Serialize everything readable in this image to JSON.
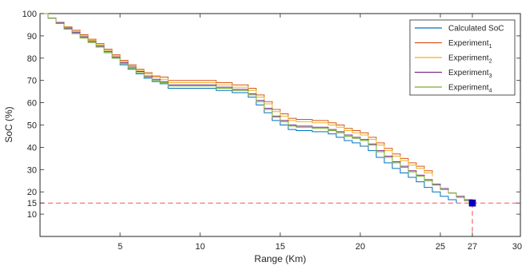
{
  "chart_data": {
    "type": "line",
    "xlabel": "Range (Km)",
    "ylabel": "SoC (%)",
    "xlim": [
      0,
      30
    ],
    "ylim": [
      0,
      100
    ],
    "xticks": [
      {
        "value": 5,
        "label": "5"
      },
      {
        "value": 10,
        "label": "10"
      },
      {
        "value": 15,
        "label": "15"
      },
      {
        "value": 20,
        "label": "20"
      },
      {
        "value": 25,
        "label": "25"
      },
      {
        "value": 27,
        "label": "27"
      },
      {
        "value": 30,
        "label": "30"
      }
    ],
    "yticks": [
      {
        "value": 10,
        "label": "10"
      },
      {
        "value": 15,
        "label": "15"
      },
      {
        "value": 20,
        "label": "20"
      },
      {
        "value": 30,
        "label": "30"
      },
      {
        "value": 40,
        "label": "40"
      },
      {
        "value": 50,
        "label": "50"
      },
      {
        "value": 60,
        "label": "60"
      },
      {
        "value": 70,
        "label": "70"
      },
      {
        "value": 80,
        "label": "80"
      },
      {
        "value": 90,
        "label": "90"
      },
      {
        "value": 100,
        "label": "100"
      }
    ],
    "legend_position": "top-right",
    "grid": false,
    "series": [
      {
        "name": "Calculated SoC",
        "name_parts": [
          "Calculated SoC",
          ""
        ],
        "color": "#0072BD",
        "x": [
          0,
          0.5,
          1,
          1.5,
          2,
          2.5,
          3,
          3.5,
          4,
          4.5,
          5,
          5.5,
          6,
          6.5,
          7,
          7.5,
          8,
          9,
          10,
          11,
          12,
          12.5,
          13,
          13.5,
          14,
          14.5,
          15,
          15.5,
          16,
          17,
          18,
          18.5,
          19,
          19.5,
          20,
          20.5,
          21,
          21.5,
          22,
          22.5,
          23,
          23.5,
          24,
          24.5,
          25,
          25.5,
          26
        ],
        "y": [
          100,
          98,
          96,
          93.5,
          91.5,
          89.5,
          87.5,
          85,
          82.5,
          80,
          77,
          75,
          73,
          71,
          69.5,
          68.5,
          66.5,
          66.5,
          66.5,
          65.5,
          64.5,
          64.5,
          62.5,
          59,
          55.5,
          52,
          50,
          48,
          47.5,
          47,
          46,
          44.5,
          43,
          42,
          40.5,
          38.5,
          35.5,
          33,
          30.5,
          28.5,
          26.5,
          24.5,
          22,
          20,
          18,
          16.5,
          15
        ]
      },
      {
        "name": "Experiment1",
        "name_parts": [
          "Experiment",
          "1"
        ],
        "color": "#D95319",
        "x": [
          0,
          0.5,
          1,
          1.5,
          2,
          2.5,
          3,
          3.5,
          4,
          4.5,
          5,
          5.5,
          6,
          6.5,
          7,
          7.5,
          8,
          9,
          10,
          11,
          12,
          12.5,
          13,
          13.5,
          14,
          14.5,
          15,
          15.5,
          16,
          17,
          18,
          18.5,
          19,
          19.5,
          20,
          20.5,
          21,
          21.5,
          22,
          22.5,
          23,
          23.5,
          24,
          24.5
        ],
        "y": [
          100,
          98,
          96,
          94,
          92.5,
          90.5,
          88.5,
          86.5,
          84,
          81.5,
          79,
          77,
          75,
          73.5,
          72,
          71.5,
          70,
          70,
          70,
          69,
          68,
          68,
          66.5,
          63.5,
          60.5,
          57,
          55,
          53,
          52.5,
          52,
          51,
          50,
          48.5,
          47.5,
          46.5,
          44.5,
          42,
          39.5,
          37,
          35,
          33,
          31.5,
          29.5,
          28
        ]
      },
      {
        "name": "Experiment2",
        "name_parts": [
          "Experiment",
          "2"
        ],
        "color": "#EDB120",
        "x": [
          0,
          0.5,
          1,
          1.5,
          2,
          2.5,
          3,
          3.5,
          4,
          4.5,
          5,
          5.5,
          6,
          6.5,
          7,
          7.5,
          8,
          9,
          10,
          11,
          12,
          12.5,
          13,
          13.5,
          14,
          14.5,
          15,
          15.5,
          16,
          17,
          18,
          18.5,
          19,
          19.5,
          20,
          20.5,
          21,
          21.5,
          22,
          22.5,
          23,
          23.5,
          24,
          24.5
        ],
        "y": [
          100,
          98,
          96,
          93.5,
          92,
          90,
          88,
          86,
          83.5,
          81,
          78.5,
          76.5,
          74.5,
          73,
          71.5,
          70.5,
          69,
          69,
          69,
          68,
          67,
          67,
          65.5,
          62.5,
          59.5,
          56,
          54,
          52,
          51.5,
          51,
          50,
          49,
          47.5,
          46.5,
          45.5,
          43.5,
          41,
          38.5,
          36,
          34,
          32,
          30.5,
          28.5,
          27
        ]
      },
      {
        "name": "Experiment3",
        "name_parts": [
          "Experiment",
          "3"
        ],
        "color": "#7E2F8E",
        "x": [
          0,
          0.5,
          1,
          1.5,
          2,
          2.5,
          3,
          3.5,
          4,
          4.5,
          5,
          5.5,
          6,
          6.5,
          7,
          7.5,
          8,
          9,
          10,
          11,
          12,
          12.5,
          13,
          13.5,
          14,
          14.5,
          15,
          15.5,
          16,
          17,
          18,
          18.5,
          19,
          19.5,
          20,
          20.5,
          21,
          21.5,
          22,
          22.5,
          23,
          23.5,
          24,
          24.5,
          25,
          25.5,
          26,
          26.5,
          27
        ],
        "y": [
          100,
          98,
          96,
          93.5,
          91.5,
          89.5,
          87.5,
          85.5,
          83,
          80.5,
          78,
          76,
          74,
          72,
          70.5,
          69.5,
          68,
          68,
          68,
          67,
          66,
          66,
          64,
          61,
          57.5,
          54,
          52,
          50,
          49.5,
          49,
          48,
          47,
          45.5,
          44.5,
          43.5,
          41.5,
          38.5,
          36,
          33.5,
          31.5,
          29.5,
          27.5,
          25.5,
          23.5,
          21.5,
          19.5,
          18,
          16.5,
          15
        ]
      },
      {
        "name": "Experiment4",
        "name_parts": [
          "Experiment",
          "4"
        ],
        "color": "#77AC30",
        "x": [
          0,
          0.5,
          1,
          1.5,
          2,
          2.5,
          3,
          3.5,
          4,
          4.5,
          5,
          5.5,
          6,
          6.5,
          7,
          7.5,
          8,
          9,
          10,
          11,
          12,
          12.5,
          13,
          13.5,
          14,
          14.5,
          15,
          15.5,
          16,
          17,
          18,
          18.5,
          19,
          19.5,
          20,
          20.5,
          21,
          21.5,
          22,
          22.5,
          23,
          23.5,
          24,
          24.5,
          25,
          25.5,
          26,
          26.5,
          27
        ],
        "y": [
          100,
          98,
          95.5,
          93,
          91,
          89,
          87,
          85,
          82.5,
          80,
          77.5,
          75.5,
          73.5,
          71.5,
          70,
          69,
          67.5,
          67.5,
          67.5,
          66.5,
          65.5,
          65.5,
          63.5,
          60.5,
          57,
          53.5,
          51.5,
          49.5,
          49,
          48.5,
          47.5,
          46.5,
          45,
          44,
          43,
          41,
          38,
          35.5,
          33,
          31,
          29,
          27,
          25,
          23,
          21,
          19.5,
          17.5,
          16,
          15
        ]
      }
    ],
    "reference_point": {
      "x": 27,
      "y": 15,
      "color": "#0000CC"
    },
    "reference_line_color": "#FF3333"
  }
}
